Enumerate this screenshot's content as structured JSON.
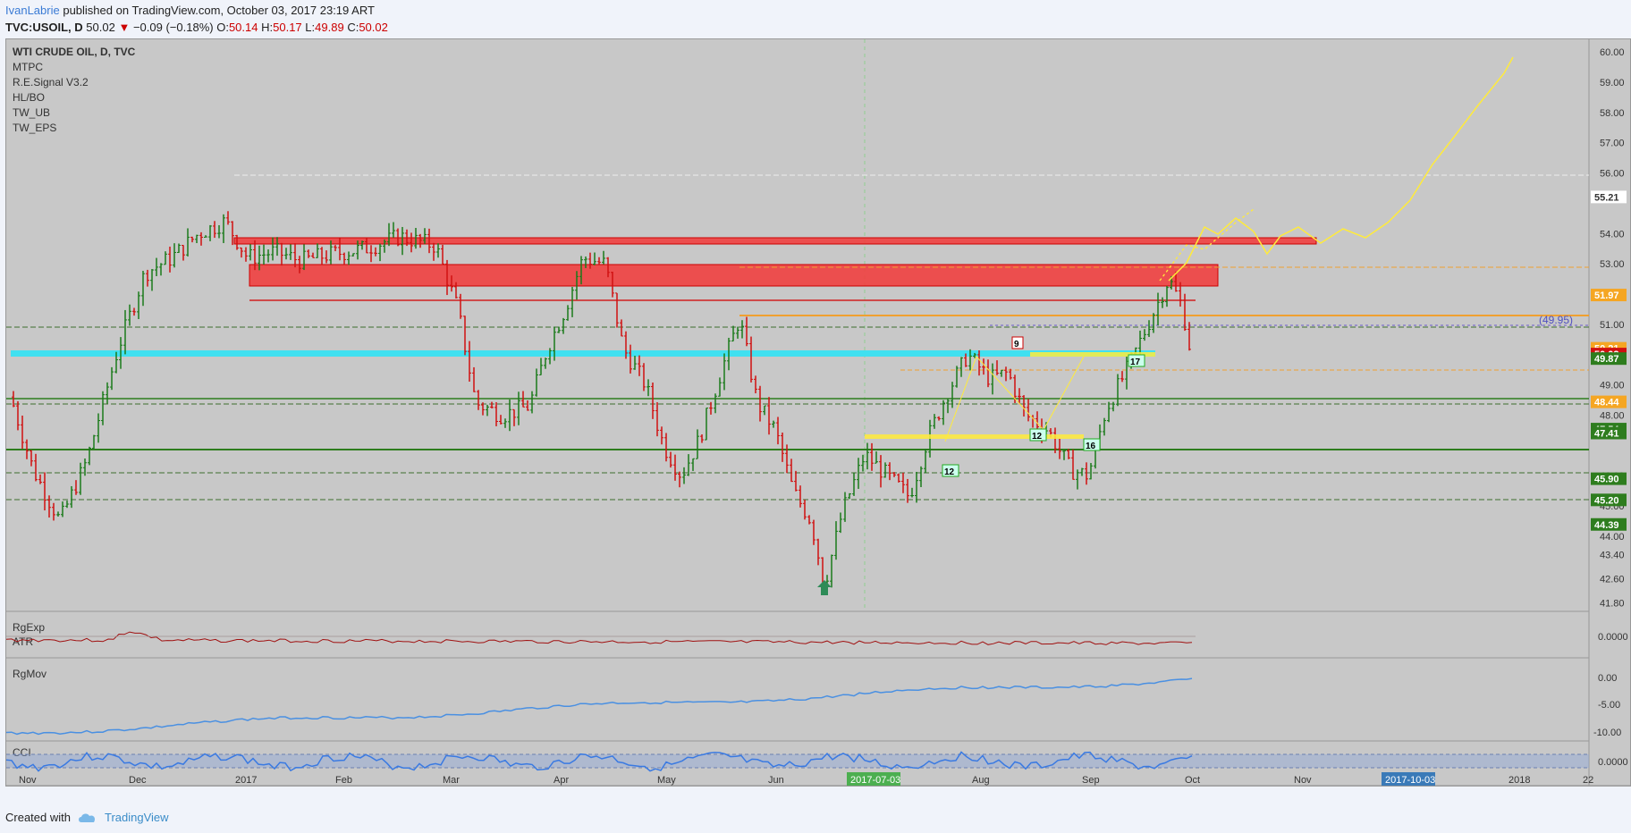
{
  "header": {
    "author": "IvanLabrie",
    "published": "published on TradingView.com, October 03, 2017 23:19 ART",
    "symbol": "TVC:USOIL, D",
    "last": "50.02",
    "change_arrow": "▼",
    "change": "−0.09 (−0.18%)",
    "o_label": "O:",
    "o": "50.14",
    "h_label": "H:",
    "h": "50.17",
    "l_label": "L:",
    "l": "49.89",
    "c_label": "C:",
    "c": "50.02"
  },
  "legend": [
    "WTI CRUDE OIL, D, TVC",
    "MTPC",
    "R.E.Signal V3.2",
    "HL/BO",
    "TW_UB",
    "TW_EPS"
  ],
  "panes": {
    "rg_exp": "RgExp",
    "atr": "ATR",
    "rg_mov": "RgMov",
    "cci": "CCI"
  },
  "footer": {
    "created_with": "Created with",
    "brand": "TradingView"
  },
  "colors": {
    "up": "#1a7a1a",
    "down": "#d01010",
    "line_blue": "#4a90e2",
    "forecast": "#ffeb3b",
    "zone_red": "#f03030",
    "zone_cyan": "#40e0f0"
  },
  "chart_data": {
    "type": "candlestick",
    "title": "WTI CRUDE OIL, D, TVC",
    "price_axis_ticks": [
      "60.00",
      "59.00",
      "58.00",
      "57.00",
      "56.00",
      "54.00",
      "53.00",
      "51.00",
      "49.00",
      "48.00",
      "46.00",
      "45.00",
      "44.00",
      "43.40",
      "42.60",
      "41.80"
    ],
    "price_labels": [
      {
        "value": "55.21",
        "style": "white"
      },
      {
        "value": "51.97",
        "style": "orange"
      },
      {
        "value": "50.21",
        "style": "orange"
      },
      {
        "value": "50.02",
        "style": "red"
      },
      {
        "value": "49.87",
        "style": "green"
      },
      {
        "value": "48.44",
        "style": "orange"
      },
      {
        "value": "47.54",
        "style": "green"
      },
      {
        "value": "47.41",
        "style": "green"
      },
      {
        "value": "45.90",
        "style": "green"
      },
      {
        "value": "45.20",
        "style": "green"
      },
      {
        "value": "44.39",
        "style": "green"
      }
    ],
    "x_labels": [
      "Nov",
      "Dec",
      "2017",
      "Feb",
      "Mar",
      "Apr",
      "May",
      "Jun",
      "2017-07-03",
      "Aug",
      "Sep",
      "Oct",
      "Nov",
      "2017-10-03",
      "2018",
      "22"
    ],
    "annotations": [
      "(49.95)",
      "9",
      "12",
      "12",
      "16",
      "17"
    ],
    "sub_axes": {
      "rg_exp": [
        "0.0000"
      ],
      "rg_mov": [
        "0.00",
        "-5.00",
        "-10.00"
      ],
      "cci": [
        "0.0000"
      ]
    },
    "ylim": [
      41.4,
      60.3
    ]
  }
}
